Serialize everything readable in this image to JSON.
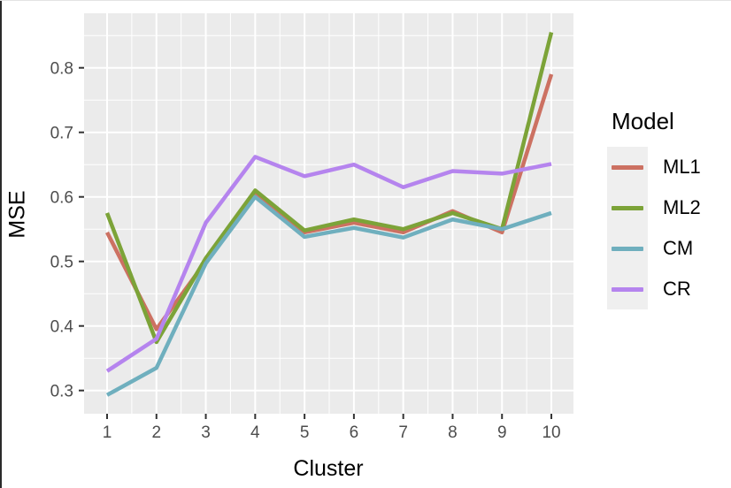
{
  "chart_data": {
    "type": "line",
    "title": "",
    "xlabel": "Cluster",
    "ylabel": "MSE",
    "x": [
      1,
      2,
      3,
      4,
      5,
      6,
      7,
      8,
      9,
      10
    ],
    "x_ticks": [
      "1",
      "2",
      "3",
      "4",
      "5",
      "6",
      "7",
      "8",
      "9",
      "10"
    ],
    "y_ticks": [
      "0.3",
      "0.4",
      "0.5",
      "0.6",
      "0.7",
      "0.8"
    ],
    "y_tick_values": [
      0.3,
      0.4,
      0.5,
      0.6,
      0.7,
      0.8
    ],
    "ylim": [
      0.264,
      0.885
    ],
    "xlim": [
      0.53,
      10.45
    ],
    "grid": true,
    "legend": {
      "title": "Model",
      "position": "right"
    },
    "series": [
      {
        "name": "ML1",
        "color": "#CC7162",
        "values": [
          0.545,
          0.395,
          0.5,
          0.605,
          0.545,
          0.56,
          0.545,
          0.578,
          0.545,
          0.79
        ]
      },
      {
        "name": "ML2",
        "color": "#7CA338",
        "values": [
          0.575,
          0.375,
          0.505,
          0.61,
          0.548,
          0.565,
          0.55,
          0.575,
          0.55,
          0.855
        ]
      },
      {
        "name": "CM",
        "color": "#6FAFBE",
        "values": [
          0.293,
          0.335,
          0.497,
          0.6,
          0.538,
          0.552,
          0.537,
          0.565,
          0.55,
          0.575
        ]
      },
      {
        "name": "CR",
        "color": "#B584EE",
        "values": [
          0.33,
          0.38,
          0.56,
          0.662,
          0.632,
          0.65,
          0.615,
          0.64,
          0.636,
          0.651
        ]
      }
    ],
    "colors": {
      "panel_bg": "#EBEBEB",
      "grid": "#FFFFFF",
      "tick_label": "#4D4D4D",
      "tick_mark": "#333333"
    }
  }
}
